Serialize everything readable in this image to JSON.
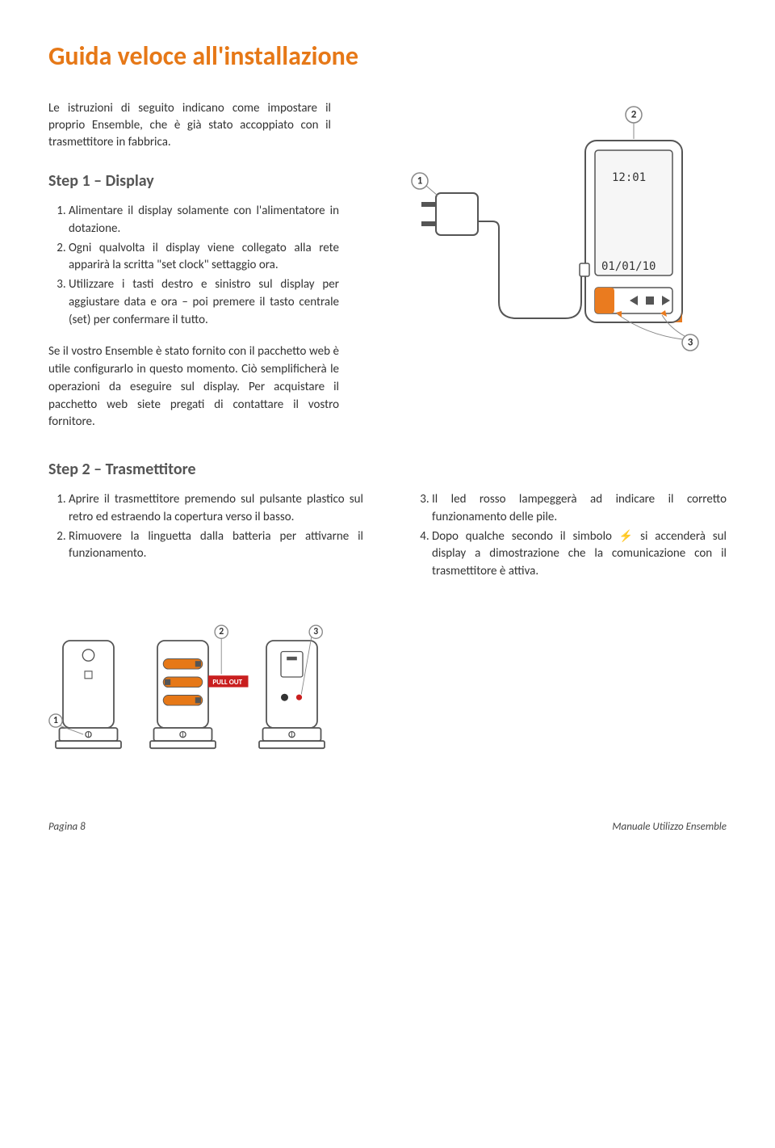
{
  "title": "Guida veloce all'installazione",
  "intro": "Le istruzioni di seguito indicano come impostare il proprio Ensemble, che è già stato accoppiato con il trasmettitore in fabbrica.",
  "step1": {
    "heading": "Step 1 – Display",
    "items": [
      "Alimentare il display solamente con l'alimentatore in dotazione.",
      "Ogni qualvolta il display viene collegato alla rete apparirà la scritta \"set clock\" settaggio ora.",
      "Utilizzare i tasti destro e sinistro sul display per aggiustare data e ora – poi premere il tasto centrale (set) per confermare il tutto."
    ],
    "note": "Se il vostro Ensemble è stato fornito con il pacchetto web è utile configurarlo in questo momento. Ciò semplificherà le operazioni da eseguire sul display. Per acquistare il pacchetto web siete pregati di contattare il vostro fornitore.",
    "diagram": {
      "callouts": [
        "1",
        "2",
        "3"
      ],
      "lcd_time": "12:01",
      "lcd_date": "01/01/10",
      "accent_color": "#ea7b1f",
      "device_stroke": "#555555"
    }
  },
  "step2": {
    "heading": "Step 2 – Trasmettitore",
    "left_items": [
      "Aprire il trasmettitore premendo sul pulsante plastico sul retro ed estraendo la copertura verso il basso.",
      "Rimuovere la linguetta dalla batteria per attivarne il funzionamento."
    ],
    "right_start": 3,
    "right_items_html": [
      "Il led rosso lampeggerà ad indicare il corretto funzionamento delle pile.",
      "Dopo qualche secondo il simbolo <span class=\"lightning-icon\">⚡</span> si accenderà sul display a dimostrazione che la comunicazione con il trasmettitore è attiva."
    ],
    "diagram": {
      "callouts": [
        "1",
        "2",
        "3"
      ],
      "pullout_label": "PULL OUT",
      "pullout_bg": "#c91f1f",
      "battery_color": "#e67817"
    }
  },
  "footer": {
    "left": "Pagina 8",
    "right": "Manuale Utilizzo Ensemble"
  },
  "colors": {
    "heading": "#e67817",
    "subheading": "#555555",
    "body": "#333333"
  }
}
